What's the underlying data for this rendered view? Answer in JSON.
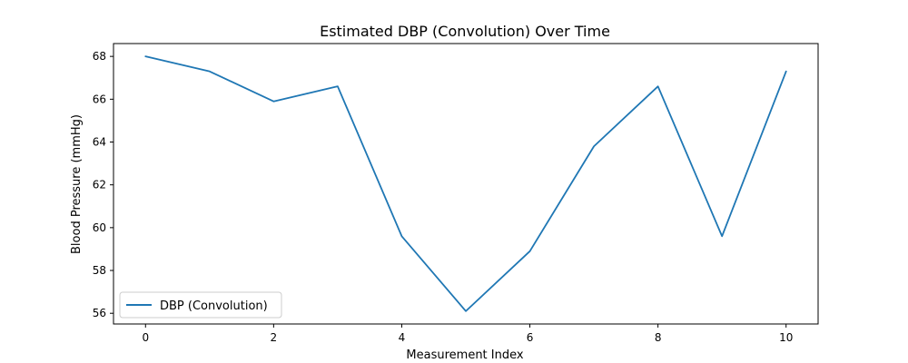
{
  "chart_data": {
    "type": "line",
    "title": "Estimated DBP (Convolution) Over Time",
    "xlabel": "Measurement Index",
    "ylabel": "Blood Pressure (mmHg)",
    "xlim": [
      -0.5,
      10.5
    ],
    "ylim": [
      55.5,
      68.6
    ],
    "xticks": [
      0,
      2,
      4,
      6,
      8,
      10
    ],
    "yticks": [
      56,
      58,
      60,
      62,
      64,
      66,
      68
    ],
    "grid": false,
    "legend_position": "lower-left",
    "series": [
      {
        "name": "DBP (Convolution)",
        "color": "#1f77b4",
        "x": [
          0,
          1,
          2,
          3,
          4,
          5,
          6,
          7,
          8,
          9,
          10
        ],
        "y": [
          68.0,
          67.3,
          65.9,
          66.6,
          59.6,
          56.1,
          58.9,
          63.8,
          66.6,
          59.6,
          67.3
        ]
      }
    ]
  }
}
